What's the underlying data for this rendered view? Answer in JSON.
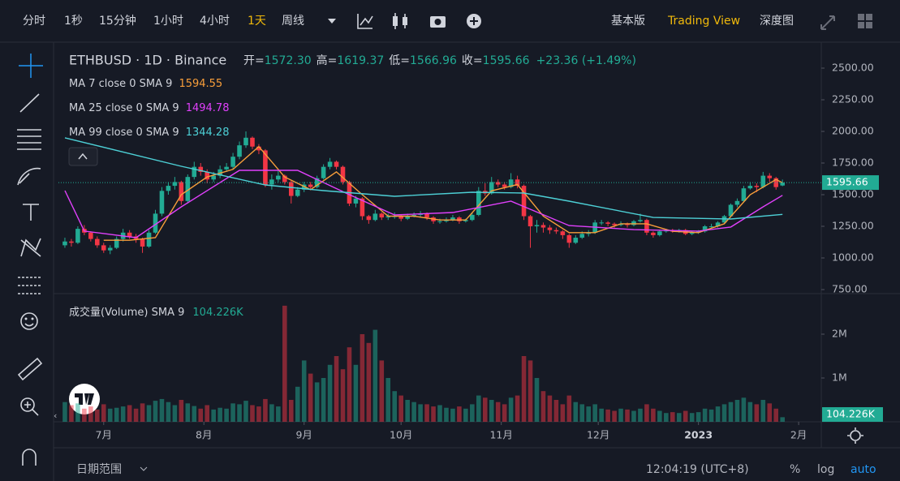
{
  "toolbar": {
    "intervals": [
      "分时",
      "1秒",
      "15分钟",
      "1小时",
      "4小时",
      "1天",
      "周线"
    ],
    "views": [
      "基本版",
      "Trading View",
      "深度图"
    ]
  },
  "footer": {
    "range": "日期范围",
    "time": "12:04:19 (UTC+8)",
    "modes": [
      "%",
      "log",
      "auto"
    ]
  },
  "chart_data": {
    "type": "candlestick",
    "header": {
      "symbol": "ETHBUSD · 1D · Binance",
      "ohlc": [
        {
          "label": "开=",
          "value": "1572.30"
        },
        {
          "label": "高=",
          "value": "1619.37"
        },
        {
          "label": "低=",
          "value": "1566.96"
        },
        {
          "label": "收=",
          "value": "1595.66"
        }
      ],
      "change": "+23.36 (+1.49%)"
    },
    "up_color": "#22ab94",
    "down_color": "#f23645",
    "xlim": [
      -1,
      117
    ],
    "xticks": [
      {
        "value": 6,
        "label": "7月"
      },
      {
        "value": 21.5,
        "label": "8月"
      },
      {
        "value": 37,
        "label": "9月"
      },
      {
        "value": 52,
        "label": "10月"
      },
      {
        "value": 67.5,
        "label": "11月"
      },
      {
        "value": 82.5,
        "label": "12月"
      },
      {
        "value": 98,
        "label": "2023"
      },
      {
        "value": 113.5,
        "label": "2月"
      }
    ],
    "ylim": [
      718,
      2705
    ],
    "yticks": [
      {
        "value": 750,
        "label": "750.00"
      },
      {
        "value": 1000,
        "label": "1000.00"
      },
      {
        "value": 1250,
        "label": "1250.00"
      },
      {
        "value": 1500,
        "label": "1500.00"
      },
      {
        "value": 1750,
        "label": "1750.00"
      },
      {
        "value": 2000,
        "label": "2000.00"
      },
      {
        "value": 2250,
        "label": "2250.00"
      },
      {
        "value": 2500,
        "label": "2500.00"
      }
    ],
    "last_price_label": "1595.66",
    "ohlc": [
      [
        1100,
        1160,
        1080,
        1130
      ],
      [
        1130,
        1150,
        1090,
        1120
      ],
      [
        1120,
        1250,
        1110,
        1230
      ],
      [
        1230,
        1260,
        1180,
        1200
      ],
      [
        1200,
        1210,
        1130,
        1150
      ],
      [
        1150,
        1170,
        1080,
        1100
      ],
      [
        1100,
        1120,
        1040,
        1060
      ],
      [
        1060,
        1100,
        1030,
        1080
      ],
      [
        1080,
        1170,
        1070,
        1150
      ],
      [
        1150,
        1230,
        1130,
        1200
      ],
      [
        1200,
        1220,
        1150,
        1170
      ],
      [
        1170,
        1190,
        1120,
        1150
      ],
      [
        1150,
        1160,
        1040,
        1090
      ],
      [
        1090,
        1220,
        1080,
        1200
      ],
      [
        1200,
        1380,
        1190,
        1350
      ],
      [
        1350,
        1560,
        1330,
        1530
      ],
      [
        1530,
        1600,
        1500,
        1570
      ],
      [
        1570,
        1640,
        1540,
        1600
      ],
      [
        1600,
        1610,
        1420,
        1450
      ],
      [
        1450,
        1660,
        1430,
        1640
      ],
      [
        1640,
        1760,
        1620,
        1720
      ],
      [
        1720,
        1750,
        1650,
        1680
      ],
      [
        1680,
        1700,
        1590,
        1620
      ],
      [
        1620,
        1680,
        1600,
        1650
      ],
      [
        1650,
        1730,
        1630,
        1700
      ],
      [
        1700,
        1750,
        1680,
        1720
      ],
      [
        1720,
        1830,
        1700,
        1800
      ],
      [
        1800,
        1920,
        1780,
        1890
      ],
      [
        1890,
        2000,
        1870,
        1950
      ],
      [
        1950,
        1960,
        1860,
        1880
      ],
      [
        1880,
        1900,
        1820,
        1850
      ],
      [
        1850,
        1860,
        1560,
        1580
      ],
      [
        1580,
        1660,
        1540,
        1620
      ],
      [
        1620,
        1690,
        1600,
        1650
      ],
      [
        1650,
        1660,
        1580,
        1600
      ],
      [
        1600,
        1610,
        1430,
        1490
      ],
      [
        1490,
        1560,
        1480,
        1540
      ],
      [
        1540,
        1600,
        1520,
        1580
      ],
      [
        1580,
        1600,
        1540,
        1560
      ],
      [
        1560,
        1650,
        1550,
        1630
      ],
      [
        1630,
        1740,
        1620,
        1720
      ],
      [
        1720,
        1790,
        1700,
        1760
      ],
      [
        1760,
        1770,
        1700,
        1720
      ],
      [
        1720,
        1730,
        1580,
        1600
      ],
      [
        1600,
        1610,
        1410,
        1430
      ],
      [
        1430,
        1490,
        1400,
        1470
      ],
      [
        1470,
        1480,
        1300,
        1330
      ],
      [
        1330,
        1340,
        1270,
        1300
      ],
      [
        1300,
        1380,
        1290,
        1350
      ],
      [
        1350,
        1360,
        1300,
        1320
      ],
      [
        1320,
        1350,
        1300,
        1330
      ],
      [
        1330,
        1360,
        1310,
        1330
      ],
      [
        1330,
        1340,
        1290,
        1310
      ],
      [
        1310,
        1350,
        1300,
        1330
      ],
      [
        1330,
        1360,
        1320,
        1340
      ],
      [
        1340,
        1370,
        1320,
        1350
      ],
      [
        1350,
        1360,
        1300,
        1320
      ],
      [
        1320,
        1330,
        1270,
        1290
      ],
      [
        1290,
        1310,
        1270,
        1290
      ],
      [
        1290,
        1320,
        1280,
        1300
      ],
      [
        1300,
        1340,
        1290,
        1320
      ],
      [
        1320,
        1330,
        1270,
        1290
      ],
      [
        1290,
        1310,
        1280,
        1300
      ],
      [
        1300,
        1360,
        1290,
        1340
      ],
      [
        1340,
        1560,
        1330,
        1530
      ],
      [
        1530,
        1590,
        1490,
        1510
      ],
      [
        1510,
        1640,
        1500,
        1600
      ],
      [
        1600,
        1620,
        1560,
        1580
      ],
      [
        1580,
        1600,
        1540,
        1560
      ],
      [
        1560,
        1670,
        1550,
        1620
      ],
      [
        1620,
        1650,
        1550,
        1570
      ],
      [
        1570,
        1580,
        1300,
        1330
      ],
      [
        1330,
        1340,
        1080,
        1250
      ],
      [
        1250,
        1300,
        1200,
        1260
      ],
      [
        1260,
        1280,
        1200,
        1240
      ],
      [
        1240,
        1260,
        1190,
        1220
      ],
      [
        1220,
        1240,
        1190,
        1210
      ],
      [
        1210,
        1220,
        1150,
        1180
      ],
      [
        1180,
        1190,
        1080,
        1120
      ],
      [
        1120,
        1180,
        1110,
        1160
      ],
      [
        1160,
        1210,
        1150,
        1190
      ],
      [
        1190,
        1220,
        1170,
        1200
      ],
      [
        1200,
        1300,
        1190,
        1280
      ],
      [
        1280,
        1300,
        1260,
        1280
      ],
      [
        1280,
        1290,
        1250,
        1270
      ],
      [
        1270,
        1280,
        1240,
        1260
      ],
      [
        1260,
        1290,
        1250,
        1270
      ],
      [
        1270,
        1280,
        1240,
        1260
      ],
      [
        1260,
        1300,
        1250,
        1290
      ],
      [
        1290,
        1350,
        1280,
        1300
      ],
      [
        1300,
        1310,
        1180,
        1200
      ],
      [
        1200,
        1210,
        1160,
        1180
      ],
      [
        1180,
        1220,
        1170,
        1210
      ],
      [
        1210,
        1230,
        1200,
        1220
      ],
      [
        1220,
        1230,
        1200,
        1210
      ],
      [
        1210,
        1230,
        1200,
        1220
      ],
      [
        1220,
        1230,
        1180,
        1190
      ],
      [
        1190,
        1210,
        1180,
        1200
      ],
      [
        1200,
        1220,
        1190,
        1210
      ],
      [
        1210,
        1260,
        1200,
        1250
      ],
      [
        1250,
        1270,
        1240,
        1250
      ],
      [
        1250,
        1290,
        1240,
        1280
      ],
      [
        1280,
        1340,
        1270,
        1330
      ],
      [
        1330,
        1430,
        1320,
        1420
      ],
      [
        1420,
        1470,
        1400,
        1450
      ],
      [
        1450,
        1570,
        1440,
        1550
      ],
      [
        1550,
        1600,
        1540,
        1570
      ],
      [
        1570,
        1590,
        1520,
        1560
      ],
      [
        1560,
        1680,
        1550,
        1650
      ],
      [
        1650,
        1670,
        1600,
        1630
      ],
      [
        1630,
        1640,
        1540,
        1560
      ],
      [
        1572.3,
        1619.37,
        1566.96,
        1595.66
      ]
    ],
    "ma": [
      {
        "name": "MA 7 close 0 SMA 9",
        "legend_value": "1594.55",
        "color": "#f89e3a",
        "x": [
          6,
          10,
          14,
          18,
          22,
          26,
          30,
          34,
          38,
          42,
          46,
          50,
          54,
          58,
          62,
          66,
          70,
          74,
          78,
          82,
          86,
          90,
          94,
          98,
          102,
          106,
          110,
          111
        ],
        "values": [
          1140,
          1140,
          1160,
          1500,
          1640,
          1700,
          1880,
          1640,
          1540,
          1680,
          1500,
          1330,
          1330,
          1300,
          1300,
          1530,
          1580,
          1330,
          1200,
          1200,
          1270,
          1270,
          1210,
          1200,
          1270,
          1500,
          1620,
          1594.55
        ]
      },
      {
        "name": "MA 25 close 0 SMA 9",
        "legend_value": "1494.78",
        "color": "#e040fb",
        "x": [
          0,
          3,
          11,
          18,
          27,
          36,
          44,
          51,
          60,
          69,
          78,
          88,
          98,
          103,
          108,
          111
        ],
        "values": [
          1532,
          1212,
          1160,
          1404,
          1692,
          1692,
          1500,
          1340,
          1359,
          1449,
          1256,
          1224,
          1212,
          1244,
          1404,
          1494.78
        ]
      },
      {
        "name": "MA 99 close 0 SMA 9",
        "legend_value": "1344.28",
        "color": "#4dd0d6",
        "x": [
          0,
          18,
          31,
          40,
          51,
          63,
          71,
          78,
          91,
          103,
          111
        ],
        "values": [
          1949,
          1724,
          1577,
          1532,
          1487,
          1519,
          1513,
          1449,
          1320,
          1308,
          1344.28
        ]
      }
    ],
    "volume": {
      "name": "成交量(Volume) SMA 9",
      "value_label": "104.226K",
      "ylim": [
        0,
        2907000
      ],
      "yticks": [
        {
          "value": 1000000,
          "label": "1M"
        },
        {
          "value": 2000000,
          "label": "2M"
        }
      ],
      "values": [
        450000,
        380000,
        420000,
        300000,
        350000,
        280000,
        400000,
        300000,
        320000,
        350000,
        380000,
        300000,
        420000,
        380000,
        480000,
        520000,
        450000,
        380000,
        500000,
        420000,
        360000,
        300000,
        380000,
        280000,
        320000,
        300000,
        420000,
        400000,
        480000,
        380000,
        350000,
        520000,
        400000,
        350000,
        2650000,
        500000,
        800000,
        1400000,
        1100000,
        900000,
        1000000,
        1300000,
        1500000,
        1200000,
        1700000,
        1300000,
        2000000,
        1800000,
        2100000,
        1400000,
        1000000,
        700000,
        600000,
        500000,
        450000,
        400000,
        400000,
        350000,
        380000,
        320000,
        300000,
        350000,
        300000,
        400000,
        600000,
        550000,
        500000,
        450000,
        400000,
        550000,
        600000,
        1500000,
        1400000,
        1000000,
        700000,
        600000,
        500000,
        400000,
        600000,
        450000,
        400000,
        350000,
        400000,
        300000,
        280000,
        250000,
        300000,
        280000,
        250000,
        300000,
        400000,
        300000,
        250000,
        200000,
        220000,
        200000,
        250000,
        200000,
        220000,
        300000,
        280000,
        350000,
        400000,
        450000,
        500000,
        550000,
        450000,
        400000,
        500000,
        420000,
        300000,
        104226
      ]
    }
  }
}
